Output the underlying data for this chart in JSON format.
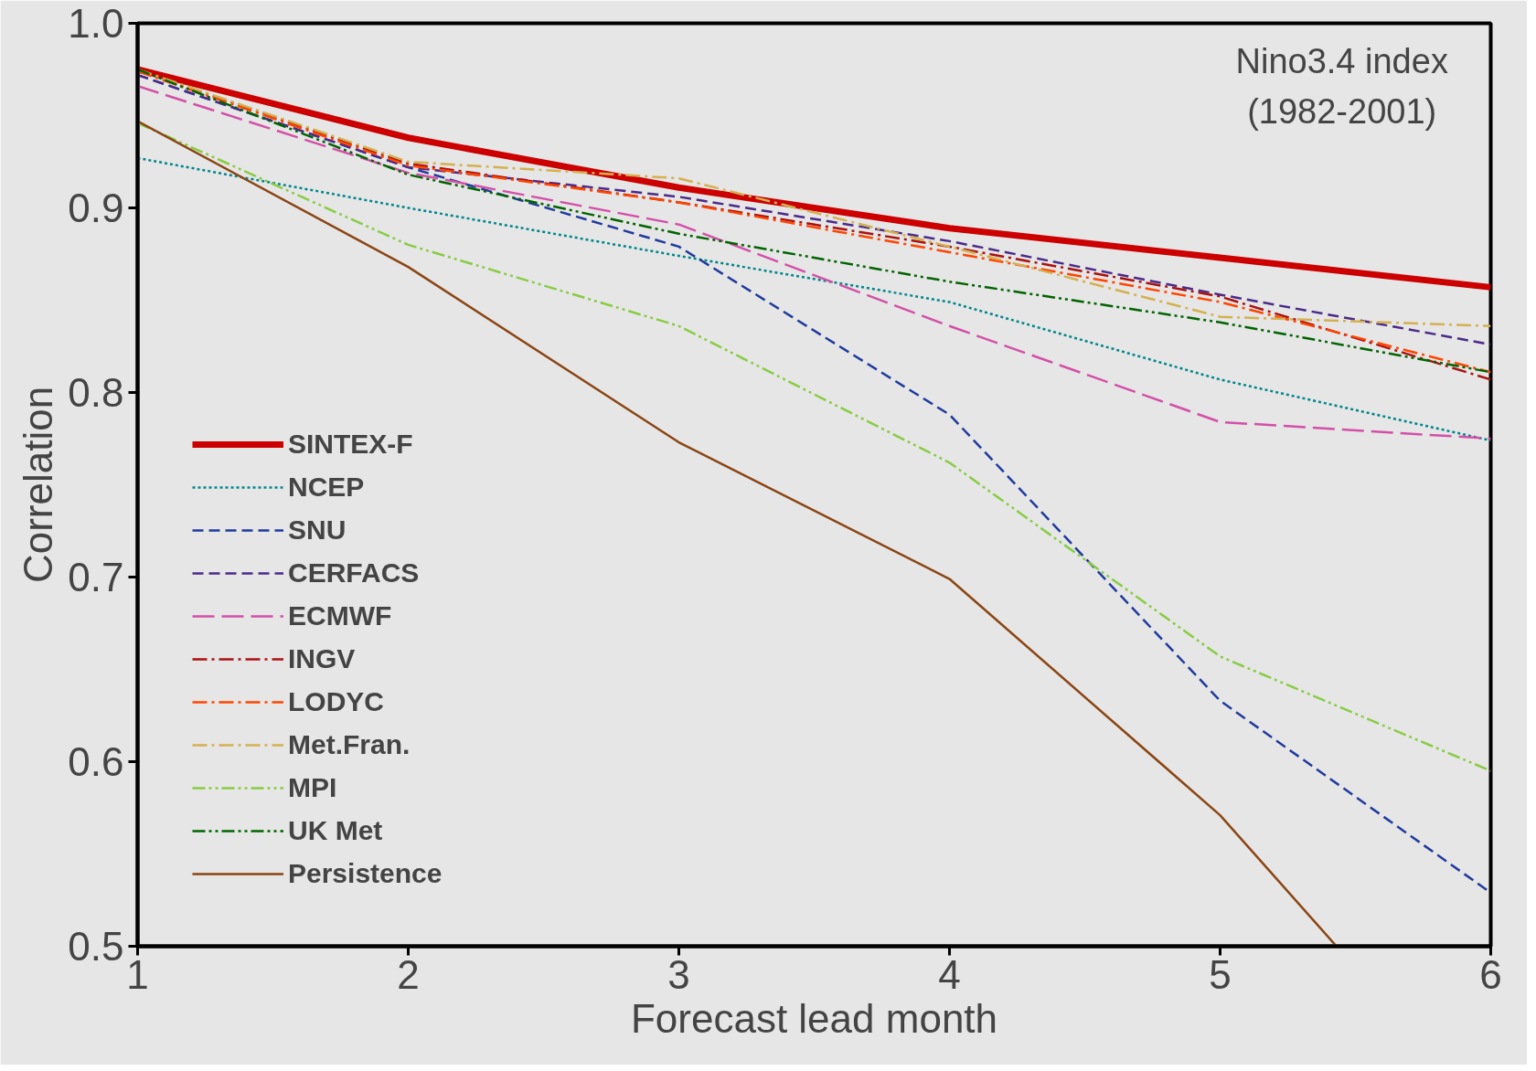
{
  "chart_data": {
    "type": "line",
    "xlabel": "Forecast lead month",
    "ylabel": "Correlation",
    "annotations": [
      "Nino3.4 index\n(1982-2001)"
    ],
    "x": [
      1,
      2,
      3,
      4,
      5,
      6
    ],
    "xlim": [
      1,
      6
    ],
    "xticks": [
      1,
      2,
      3,
      4,
      5,
      6
    ],
    "ylim": [
      0.5,
      1.0
    ],
    "yticks": [
      {
        "value": 0.5,
        "label": "0.5"
      },
      {
        "value": 0.6,
        "label": "0.6"
      },
      {
        "value": 0.7,
        "label": "0.7"
      },
      {
        "value": 0.8,
        "label": "0.8"
      },
      {
        "value": 0.9,
        "label": "0.9"
      },
      {
        "value": 1.0,
        "label": "1.0"
      }
    ],
    "grid": false,
    "legend": "bottom left",
    "marker": "none",
    "series": [
      {
        "name": "SINTEX-F",
        "color": "#cc0000",
        "line_style": "solid",
        "values": [
          0.975,
          0.938,
          0.911,
          0.889,
          0.873,
          0.857
        ]
      },
      {
        "name": "NCEP",
        "color": "#00868b",
        "line_style": "dotted",
        "values": [
          0.927,
          0.9,
          0.874,
          0.849,
          0.807,
          0.774
        ]
      },
      {
        "name": "SNU",
        "color": "#1f3a9e",
        "line_style": "dashed",
        "values": [
          0.972,
          0.922,
          0.879,
          0.788,
          0.633,
          0.529
        ]
      },
      {
        "name": "CERFACS",
        "color": "#4b2a8a",
        "line_style": "dashed",
        "values": [
          0.972,
          0.922,
          0.906,
          0.882,
          0.853,
          0.826
        ]
      },
      {
        "name": "ECMWF",
        "color": "#d44fa8",
        "line_style": "longdash",
        "values": [
          0.966,
          0.919,
          0.891,
          0.836,
          0.784,
          0.775
        ]
      },
      {
        "name": "INGV",
        "color": "#aa1111",
        "line_style": "dashdot",
        "values": [
          0.975,
          0.924,
          0.903,
          0.879,
          0.852,
          0.807
        ]
      },
      {
        "name": "LODYC",
        "color": "#ff4500",
        "line_style": "dashdot",
        "values": [
          0.974,
          0.923,
          0.903,
          0.876,
          0.849,
          0.811
        ]
      },
      {
        "name": "Met.Fran.",
        "color": "#d4b050",
        "line_style": "dashdot",
        "values": [
          0.975,
          0.925,
          0.916,
          0.879,
          0.841,
          0.836
        ]
      },
      {
        "name": "MPI",
        "color": "#88cc44",
        "line_style": "dashdotdot",
        "values": [
          0.946,
          0.88,
          0.836,
          0.762,
          0.657,
          0.595
        ]
      },
      {
        "name": "UK Met",
        "color": "#006400",
        "line_style": "dashdotdot",
        "values": [
          0.975,
          0.918,
          0.886,
          0.86,
          0.838,
          0.811
        ]
      },
      {
        "name": "Persistence",
        "color": "#8b4513",
        "line_style": "solid",
        "x": [
          1,
          2,
          3,
          4,
          5,
          5.43
        ],
        "values": [
          0.947,
          0.868,
          0.773,
          0.699,
          0.571,
          0.5
        ]
      }
    ]
  }
}
